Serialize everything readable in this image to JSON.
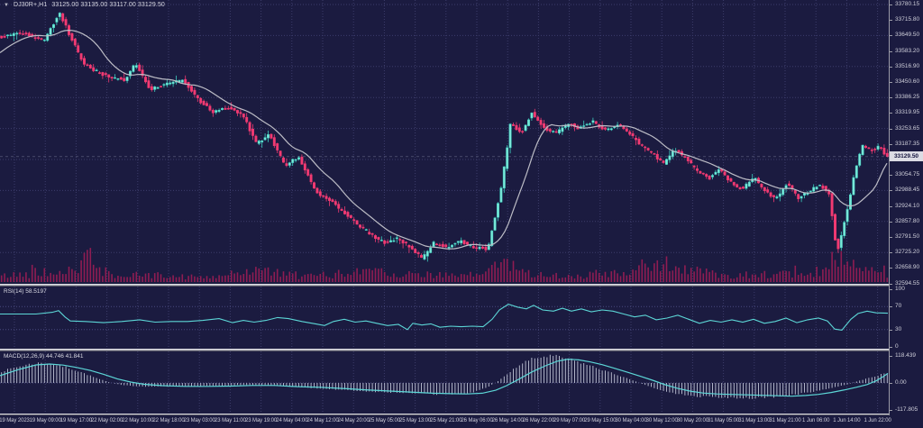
{
  "header": {
    "symbol_period": "DJ30R+,H1",
    "ohlc": "33125.00 33135.00 33117.00 33129.50"
  },
  "price_axis": {
    "labels": [
      "33780.15",
      "33715.80",
      "33649.50",
      "33583.20",
      "33516.90",
      "33450.60",
      "33386.25",
      "33319.95",
      "33253.65",
      "33187.35",
      "",
      "33054.75",
      "32988.45",
      "32924.10",
      "32857.80",
      "32791.50",
      "32725.20",
      "32658.90",
      "32594.55"
    ],
    "current_price": "33129.50"
  },
  "rsi_panel": {
    "label": "RSI(14) 58.5197",
    "scale": [
      "100",
      "70",
      "30",
      "0"
    ]
  },
  "macd_panel": {
    "label": "MACD(12,26,9) 44.746 41.841",
    "scale": [
      "118.439",
      "0.00",
      "-117.805"
    ]
  },
  "time_axis": {
    "labels": [
      "19 May 2023",
      "19 May 09:00",
      "19 May 17:00",
      "22 May 02:00",
      "22 May 10:00",
      "22 May 18:00",
      "23 May 03:00",
      "23 May 11:00",
      "23 May 19:00",
      "24 May 04:00",
      "24 May 12:00",
      "24 May 20:00",
      "25 May 05:00",
      "25 May 13:00",
      "25 May 21:00",
      "26 May 06:00",
      "26 May 14:00",
      "26 May 22:00",
      "29 May 07:00",
      "29 May 15:00",
      "30 May 04:00",
      "30 May 12:00",
      "30 May 20:00",
      "31 May 05:00",
      "31 May 13:00",
      "31 May 21:00",
      "1 Jun 06:00",
      "1 Jun 14:00",
      "1 Jun 22:00"
    ]
  },
  "colors": {
    "background": "#1b1b40",
    "grid": "#3d3d6b",
    "bull": "#7ce9d9",
    "bull_edge": "#3ecfc0",
    "bear": "#f23a72",
    "ma_line": "#bdbdc6",
    "volume": "#8f1c52",
    "indicator_line": "#5cd6d6",
    "histogram": "#c2c6d8",
    "axis_text": "#cfcfda",
    "separator": "#b2b2bc",
    "price_box_bg": "#dcdce4",
    "price_box_text": "#12123c"
  },
  "chart_data": {
    "type": "candlestick",
    "symbol": "DJ30R+",
    "timeframe": "H1",
    "current_ohlc": {
      "open": 33125.0,
      "high": 33135.0,
      "low": 33117.0,
      "close": 33129.5
    },
    "price_axis_range": {
      "top": 33780.15,
      "bottom": 32594.55,
      "step": 66.3
    },
    "price_path": [
      [
        -80,
        33380
      ],
      [
        -40,
        33520
      ],
      [
        0,
        33640
      ],
      [
        25,
        33660
      ],
      [
        50,
        33625
      ],
      [
        68,
        33745
      ],
      [
        80,
        33640
      ],
      [
        95,
        33525
      ],
      [
        115,
        33480
      ],
      [
        140,
        33455
      ],
      [
        152,
        33530
      ],
      [
        168,
        33415
      ],
      [
        185,
        33440
      ],
      [
        205,
        33455
      ],
      [
        222,
        33370
      ],
      [
        238,
        33320
      ],
      [
        255,
        33340
      ],
      [
        272,
        33300
      ],
      [
        286,
        33185
      ],
      [
        300,
        33225
      ],
      [
        318,
        33090
      ],
      [
        333,
        33130
      ],
      [
        352,
        32980
      ],
      [
        370,
        32935
      ],
      [
        392,
        32860
      ],
      [
        412,
        32800
      ],
      [
        428,
        32760
      ],
      [
        442,
        32780
      ],
      [
        458,
        32740
      ],
      [
        470,
        32692
      ],
      [
        483,
        32760
      ],
      [
        497,
        32742
      ],
      [
        512,
        32768
      ],
      [
        528,
        32740
      ],
      [
        543,
        32735
      ],
      [
        558,
        33000
      ],
      [
        568,
        33270
      ],
      [
        580,
        33230
      ],
      [
        592,
        33320
      ],
      [
        604,
        33255
      ],
      [
        618,
        33230
      ],
      [
        632,
        33270
      ],
      [
        645,
        33250
      ],
      [
        660,
        33280
      ],
      [
        672,
        33240
      ],
      [
        688,
        33270
      ],
      [
        700,
        33230
      ],
      [
        712,
        33180
      ],
      [
        725,
        33145
      ],
      [
        738,
        33100
      ],
      [
        750,
        33160
      ],
      [
        762,
        33125
      ],
      [
        775,
        33065
      ],
      [
        788,
        33035
      ],
      [
        800,
        33075
      ],
      [
        812,
        33020
      ],
      [
        825,
        32990
      ],
      [
        838,
        33040
      ],
      [
        850,
        32985
      ],
      [
        862,
        32945
      ],
      [
        875,
        33015
      ],
      [
        888,
        32950
      ],
      [
        900,
        32985
      ],
      [
        912,
        33010
      ],
      [
        922,
        32965
      ],
      [
        930,
        32715
      ],
      [
        940,
        32875
      ],
      [
        950,
        33060
      ],
      [
        958,
        33180
      ],
      [
        968,
        33155
      ],
      [
        977,
        33175
      ],
      [
        985,
        33130
      ]
    ],
    "volume_envelope": [
      [
        0,
        10
      ],
      [
        30,
        14
      ],
      [
        60,
        16
      ],
      [
        80,
        22
      ],
      [
        100,
        40
      ],
      [
        112,
        20
      ],
      [
        130,
        10
      ],
      [
        160,
        12
      ],
      [
        195,
        10
      ],
      [
        228,
        8
      ],
      [
        258,
        14
      ],
      [
        285,
        22
      ],
      [
        300,
        18
      ],
      [
        330,
        9
      ],
      [
        360,
        12
      ],
      [
        392,
        16
      ],
      [
        412,
        26
      ],
      [
        428,
        18
      ],
      [
        452,
        12
      ],
      [
        470,
        16
      ],
      [
        500,
        10
      ],
      [
        530,
        12
      ],
      [
        548,
        28
      ],
      [
        558,
        36
      ],
      [
        575,
        20
      ],
      [
        602,
        12
      ],
      [
        632,
        10
      ],
      [
        662,
        12
      ],
      [
        692,
        16
      ],
      [
        720,
        22
      ],
      [
        740,
        32
      ],
      [
        762,
        20
      ],
      [
        790,
        14
      ],
      [
        820,
        12
      ],
      [
        850,
        14
      ],
      [
        880,
        12
      ],
      [
        906,
        14
      ],
      [
        922,
        26
      ],
      [
        932,
        38
      ],
      [
        950,
        22
      ],
      [
        970,
        16
      ],
      [
        985,
        14
      ]
    ],
    "rsi": {
      "period": 14,
      "value": 58.5197,
      "levels": [
        70,
        30
      ],
      "series": [
        [
          0,
          57
        ],
        [
          40,
          57
        ],
        [
          58,
          60
        ],
        [
          65,
          63
        ],
        [
          72,
          52
        ],
        [
          78,
          45
        ],
        [
          95,
          44
        ],
        [
          115,
          42
        ],
        [
          135,
          44
        ],
        [
          155,
          47
        ],
        [
          172,
          43
        ],
        [
          190,
          44
        ],
        [
          208,
          44
        ],
        [
          225,
          46
        ],
        [
          243,
          49
        ],
        [
          258,
          42
        ],
        [
          270,
          46
        ],
        [
          282,
          43
        ],
        [
          295,
          46
        ],
        [
          308,
          51
        ],
        [
          320,
          49
        ],
        [
          335,
          44
        ],
        [
          350,
          40
        ],
        [
          360,
          37
        ],
        [
          370,
          44
        ],
        [
          382,
          48
        ],
        [
          394,
          43
        ],
        [
          406,
          45
        ],
        [
          418,
          41
        ],
        [
          430,
          37
        ],
        [
          442,
          39
        ],
        [
          452,
          30
        ],
        [
          458,
          41
        ],
        [
          468,
          38
        ],
        [
          478,
          40
        ],
        [
          488,
          34
        ],
        [
          500,
          36
        ],
        [
          512,
          35
        ],
        [
          524,
          36
        ],
        [
          536,
          35
        ],
        [
          546,
          48
        ],
        [
          554,
          64
        ],
        [
          564,
          74
        ],
        [
          574,
          69
        ],
        [
          584,
          66
        ],
        [
          592,
          72
        ],
        [
          602,
          64
        ],
        [
          614,
          62
        ],
        [
          624,
          67
        ],
        [
          634,
          62
        ],
        [
          645,
          66
        ],
        [
          656,
          61
        ],
        [
          668,
          64
        ],
        [
          680,
          62
        ],
        [
          692,
          57
        ],
        [
          704,
          52
        ],
        [
          716,
          55
        ],
        [
          728,
          47
        ],
        [
          740,
          50
        ],
        [
          752,
          55
        ],
        [
          764,
          48
        ],
        [
          776,
          41
        ],
        [
          788,
          46
        ],
        [
          800,
          43
        ],
        [
          812,
          47
        ],
        [
          824,
          43
        ],
        [
          836,
          48
        ],
        [
          848,
          41
        ],
        [
          860,
          44
        ],
        [
          872,
          50
        ],
        [
          884,
          42
        ],
        [
          896,
          47
        ],
        [
          908,
          50
        ],
        [
          918,
          45
        ],
        [
          926,
          31
        ],
        [
          934,
          29
        ],
        [
          944,
          48
        ],
        [
          952,
          58
        ],
        [
          962,
          62
        ],
        [
          972,
          59
        ],
        [
          985,
          58.5
        ]
      ]
    },
    "macd": {
      "fast": 12,
      "slow": 26,
      "signal_period": 9,
      "macd_value": 44.746,
      "signal_value": 41.841,
      "scale_max": 118.439,
      "scale_min": -117.805,
      "signal_series": [
        [
          0,
          32
        ],
        [
          20,
          58
        ],
        [
          40,
          79
        ],
        [
          55,
          83
        ],
        [
          70,
          78
        ],
        [
          85,
          68
        ],
        [
          100,
          55
        ],
        [
          115,
          38
        ],
        [
          130,
          18
        ],
        [
          145,
          4
        ],
        [
          160,
          -6
        ],
        [
          180,
          -12
        ],
        [
          205,
          -15
        ],
        [
          230,
          -15
        ],
        [
          255,
          -14
        ],
        [
          280,
          -11
        ],
        [
          305,
          -11
        ],
        [
          330,
          -16
        ],
        [
          355,
          -19
        ],
        [
          380,
          -24
        ],
        [
          405,
          -30
        ],
        [
          430,
          -35
        ],
        [
          455,
          -40
        ],
        [
          480,
          -45
        ],
        [
          500,
          -47
        ],
        [
          518,
          -48
        ],
        [
          535,
          -45
        ],
        [
          550,
          -32
        ],
        [
          562,
          -12
        ],
        [
          575,
          15
        ],
        [
          590,
          48
        ],
        [
          605,
          75
        ],
        [
          618,
          95
        ],
        [
          630,
          104
        ],
        [
          642,
          101
        ],
        [
          655,
          92
        ],
        [
          668,
          80
        ],
        [
          682,
          64
        ],
        [
          696,
          47
        ],
        [
          710,
          30
        ],
        [
          724,
          12
        ],
        [
          738,
          -8
        ],
        [
          752,
          -24
        ],
        [
          766,
          -36
        ],
        [
          780,
          -44
        ],
        [
          795,
          -48
        ],
        [
          810,
          -50
        ],
        [
          828,
          -52
        ],
        [
          845,
          -54
        ],
        [
          862,
          -56
        ],
        [
          878,
          -58
        ],
        [
          894,
          -55
        ],
        [
          908,
          -50
        ],
        [
          922,
          -42
        ],
        [
          936,
          -31
        ],
        [
          950,
          -19
        ],
        [
          962,
          -7
        ],
        [
          972,
          9
        ],
        [
          980,
          28
        ],
        [
          985,
          42
        ]
      ],
      "histogram_series": [
        [
          0,
          48
        ],
        [
          15,
          66
        ],
        [
          30,
          80
        ],
        [
          45,
          88
        ],
        [
          60,
          82
        ],
        [
          75,
          67
        ],
        [
          90,
          47
        ],
        [
          105,
          24
        ],
        [
          120,
          4
        ],
        [
          135,
          -9
        ],
        [
          152,
          -15
        ],
        [
          172,
          -16
        ],
        [
          192,
          -15
        ],
        [
          212,
          -14
        ],
        [
          232,
          -13
        ],
        [
          252,
          -11
        ],
        [
          272,
          -9
        ],
        [
          292,
          -10
        ],
        [
          312,
          -14
        ],
        [
          332,
          -18
        ],
        [
          352,
          -23
        ],
        [
          372,
          -28
        ],
        [
          392,
          -33
        ],
        [
          412,
          -37
        ],
        [
          432,
          -41
        ],
        [
          452,
          -45
        ],
        [
          472,
          -48
        ],
        [
          492,
          -50
        ],
        [
          510,
          -48
        ],
        [
          525,
          -40
        ],
        [
          540,
          -20
        ],
        [
          552,
          6
        ],
        [
          564,
          42
        ],
        [
          576,
          78
        ],
        [
          588,
          102
        ],
        [
          600,
          113
        ],
        [
          612,
          118
        ],
        [
          624,
          111
        ],
        [
          636,
          99
        ],
        [
          648,
          84
        ],
        [
          662,
          66
        ],
        [
          676,
          47
        ],
        [
          690,
          28
        ],
        [
          704,
          8
        ],
        [
          718,
          -12
        ],
        [
          732,
          -30
        ],
        [
          746,
          -44
        ],
        [
          760,
          -53
        ],
        [
          775,
          -59
        ],
        [
          790,
          -61
        ],
        [
          805,
          -63
        ],
        [
          820,
          -65
        ],
        [
          835,
          -66
        ],
        [
          850,
          -64
        ],
        [
          865,
          -59
        ],
        [
          880,
          -52
        ],
        [
          895,
          -43
        ],
        [
          910,
          -33
        ],
        [
          925,
          -20
        ],
        [
          940,
          -6
        ],
        [
          952,
          8
        ],
        [
          964,
          22
        ],
        [
          975,
          34
        ],
        [
          985,
          45
        ]
      ]
    }
  }
}
